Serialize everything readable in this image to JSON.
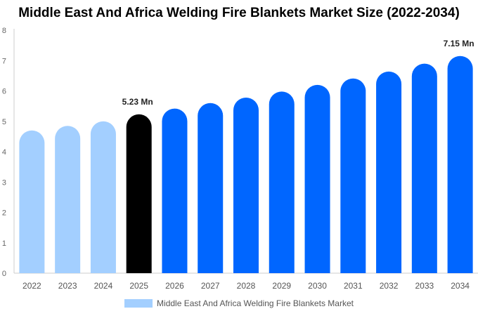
{
  "chart_data": {
    "type": "bar",
    "title": "Middle East And Africa Welding Fire Blankets Market Size (2022-2034)",
    "categories": [
      "2022",
      "2023",
      "2024",
      "2025",
      "2026",
      "2027",
      "2028",
      "2029",
      "2030",
      "2031",
      "2032",
      "2033",
      "2034"
    ],
    "series": [
      {
        "name": "Middle East And Africa Welding Fire Blankets Market",
        "values": [
          4.7,
          4.85,
          5.0,
          5.23,
          5.42,
          5.6,
          5.78,
          5.98,
          6.2,
          6.41,
          6.64,
          6.9,
          7.15
        ]
      }
    ],
    "data_labels": [
      {
        "category": "2025",
        "text": "5.23 Mn"
      },
      {
        "category": "2034",
        "text": "7.15 Mn"
      }
    ],
    "ylim": [
      0,
      8
    ],
    "yticks": [
      "0",
      "1",
      "2",
      "3",
      "4",
      "5",
      "6",
      "7",
      "8"
    ],
    "grid": false,
    "legend_position": "bottom",
    "colors": {
      "historical": "#a3cfff",
      "current": "#000000",
      "forecast": "#0066ff"
    },
    "color_groups": [
      "historical",
      "historical",
      "historical",
      "current",
      "forecast",
      "forecast",
      "forecast",
      "forecast",
      "forecast",
      "forecast",
      "forecast",
      "forecast",
      "forecast"
    ]
  }
}
